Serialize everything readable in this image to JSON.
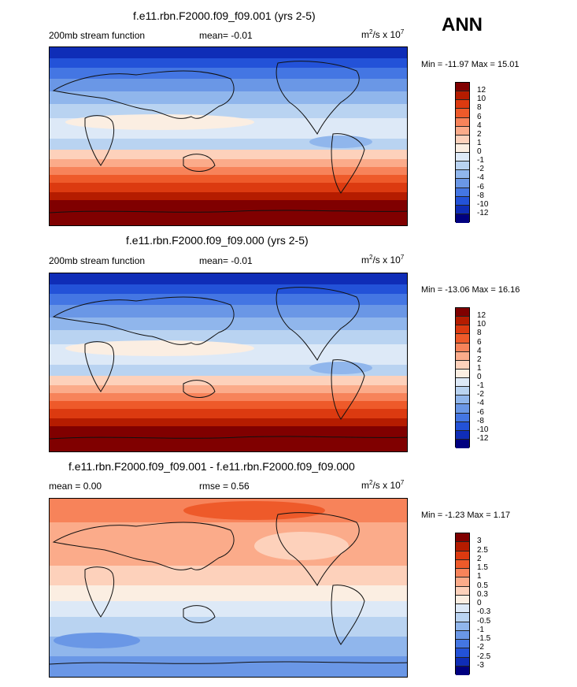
{
  "season": "ANN",
  "units_base": "m",
  "units_sup": "2",
  "units_mid": "/s x 10",
  "units_exp": "7",
  "chart_data": [
    {
      "type": "heatmap",
      "title": "f.e11.rbn.F2000.f09_f09.001 (yrs 2-5)",
      "left_label": "200mb stream function",
      "mean_label": "mean=  -0.01",
      "minmax": "Min = -11.97 Max =  15.01",
      "min": -11.97,
      "max": 15.01,
      "mean": -0.01,
      "colorbar_levels": [
        "12",
        "10",
        "8",
        "6",
        "4",
        "2",
        "1",
        "0",
        "-1",
        "-2",
        "-4",
        "-6",
        "-8",
        "-10",
        "-12"
      ],
      "colorbar_colors": [
        "#800000",
        "#b51c00",
        "#dc3a10",
        "#ee5a2a",
        "#f7835a",
        "#fbab8a",
        "#fdd1bb",
        "#fbeee2",
        "#dde9f7",
        "#b9d3f1",
        "#90b6ec",
        "#6a97e6",
        "#4476e3",
        "#2352d8",
        "#0f2db7",
        "#000080"
      ]
    },
    {
      "type": "heatmap",
      "title": "f.e11.rbn.F2000.f09_f09.000 (yrs 2-5)",
      "left_label": "200mb stream function",
      "mean_label": "mean=  -0.01",
      "minmax": "Min = -13.06 Max =  16.16",
      "min": -13.06,
      "max": 16.16,
      "mean": -0.01,
      "colorbar_levels": [
        "12",
        "10",
        "8",
        "6",
        "4",
        "2",
        "1",
        "0",
        "-1",
        "-2",
        "-4",
        "-6",
        "-8",
        "-10",
        "-12"
      ],
      "colorbar_colors": [
        "#800000",
        "#b51c00",
        "#dc3a10",
        "#ee5a2a",
        "#f7835a",
        "#fbab8a",
        "#fdd1bb",
        "#fbeee2",
        "#dde9f7",
        "#b9d3f1",
        "#90b6ec",
        "#6a97e6",
        "#4476e3",
        "#2352d8",
        "#0f2db7",
        "#000080"
      ]
    },
    {
      "type": "heatmap",
      "title": "f.e11.rbn.F2000.f09_f09.001 - f.e11.rbn.F2000.f09_f09.000",
      "left_label": "mean =   0.00",
      "mean_label": "rmse =   0.56",
      "minmax": "Min =  -1.23 Max =   1.17",
      "min": -1.23,
      "max": 1.17,
      "mean": 0.0,
      "rmse": 0.56,
      "colorbar_levels": [
        "3",
        "2.5",
        "2",
        "1.5",
        "1",
        "0.5",
        "0.3",
        "0",
        "-0.3",
        "-0.5",
        "-1",
        "-1.5",
        "-2",
        "-2.5",
        "-3"
      ],
      "colorbar_colors": [
        "#800000",
        "#b51c00",
        "#dc3a10",
        "#ee5a2a",
        "#f7835a",
        "#fbab8a",
        "#fdd1bb",
        "#fbeee2",
        "#dde9f7",
        "#b9d3f1",
        "#90b6ec",
        "#6a97e6",
        "#4476e3",
        "#2352d8",
        "#0f2db7",
        "#000080"
      ]
    }
  ]
}
